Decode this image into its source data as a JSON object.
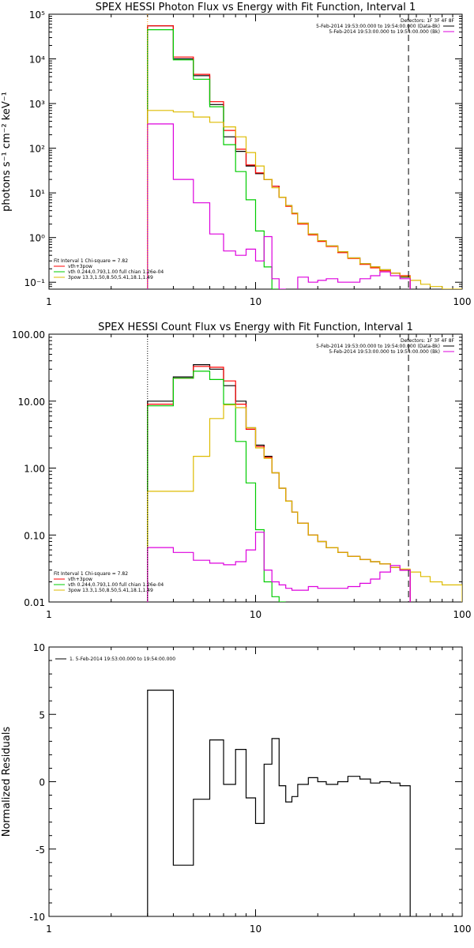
{
  "colors": {
    "black": "#000000",
    "red": "#ff0000",
    "green": "#00cc00",
    "yellow": "#ddbb00",
    "magenta": "#dd00dd",
    "orange": "#ff9900"
  },
  "chart_data": [
    {
      "type": "line",
      "title": "SPEX HESSI Photon Flux vs Energy with Fit Function, Interval 1",
      "xlabel": "",
      "ylabel": "photons s⁻¹ cm⁻² keV⁻¹",
      "xscale": "log",
      "yscale": "log",
      "xlim": [
        1,
        100
      ],
      "ylim": [
        0.07,
        100000
      ],
      "xticks": [
        {
          "v": 1,
          "label": "1"
        },
        {
          "v": 10,
          "label": "10"
        },
        {
          "v": 100,
          "label": "100"
        }
      ],
      "yticks": [
        {
          "v": 0.1,
          "label": "10⁻¹"
        },
        {
          "v": 1,
          "label": "10⁰"
        },
        {
          "v": 10,
          "label": "10¹"
        },
        {
          "v": 100,
          "label": "10²"
        },
        {
          "v": 1000,
          "label": "10³"
        },
        {
          "v": 10000,
          "label": "10⁴"
        },
        {
          "v": 100000,
          "label": "10⁵"
        }
      ],
      "edges": [
        3.0,
        4.0,
        5.0,
        6.0,
        7.0,
        8.0,
        9.0,
        10.0,
        11.0,
        12.0,
        13.0,
        14.0,
        15.0,
        16.0,
        18.0,
        20.0,
        22.0,
        25.0,
        28.0,
        32.0,
        36.0,
        40.0,
        45.0,
        50.0,
        56.0,
        63.0,
        70.0,
        80.0,
        100.0
      ],
      "series": [
        {
          "color": "#000000",
          "values": [
            55000,
            10000,
            4200,
            950,
            180,
            85,
            40,
            27,
            20,
            14,
            8,
            5.2,
            3.5,
            2.1,
            1.2,
            0.85,
            0.65,
            0.48,
            0.35,
            0.26,
            0.22,
            0.19,
            0.16,
            0.13,
            null,
            null,
            null,
            null
          ]
        },
        {
          "color": "#ff0000",
          "values": [
            55000,
            11000,
            4500,
            1100,
            250,
            95,
            42,
            28,
            20,
            14,
            8,
            5,
            3.4,
            2,
            1.15,
            0.82,
            0.63,
            0.46,
            0.34,
            0.25,
            0.21,
            0.18,
            0.16,
            0.14,
            null,
            null,
            null,
            null
          ]
        },
        {
          "color": "#00cc00",
          "values": [
            45000,
            9500,
            3500,
            850,
            120,
            30,
            7,
            1.4,
            0.22,
            0.05,
            null,
            null,
            null,
            null,
            null,
            null,
            null,
            null,
            null,
            null,
            null,
            null,
            null,
            null,
            null,
            null,
            null,
            null
          ]
        },
        {
          "color": "#ddbb00",
          "values": [
            700,
            650,
            500,
            380,
            300,
            180,
            80,
            40,
            20,
            13,
            8,
            5.2,
            3.5,
            2.1,
            1.2,
            0.85,
            0.65,
            0.48,
            0.35,
            0.26,
            0.22,
            0.19,
            0.16,
            0.135,
            0.11,
            0.09,
            0.08,
            0.07
          ]
        },
        {
          "color": "#dd00dd",
          "values": [
            350,
            20,
            6,
            1.2,
            0.5,
            0.4,
            0.55,
            0.3,
            1.05,
            0.12,
            0.07,
            null,
            null,
            0.13,
            0.1,
            0.11,
            0.12,
            0.1,
            0.1,
            0.12,
            0.14,
            0.17,
            0.14,
            0.12,
            null,
            null,
            null,
            null
          ]
        }
      ],
      "vlines": [
        {
          "x": 3.0,
          "style": "dotted-orange"
        },
        {
          "x": 55.0,
          "style": "dashed-black"
        }
      ],
      "legend_right": {
        "header": "Detectors: 1F 3F 4F 8F",
        "entries": [
          {
            "text": "5-Feb-2014 19:53:00.000 to 19:54:00.000 (Data-Bk)",
            "color": "#000000"
          },
          {
            "text": "5-Feb-2014 19:53:00.000 to 19:54:00.000 (Bk)",
            "color": "#dd00dd"
          }
        ]
      },
      "legend_left": {
        "header": "Fit Interval  1    Chi-square = 7.82",
        "entries": [
          {
            "text": "vth+3pow",
            "color": "#ff0000"
          },
          {
            "text": "vth 0.244,0.793,1.00  full chian 1.26e-04",
            "color": "#00cc00"
          },
          {
            "text": "3pow 13.3,1.50,8.50,5.41,18.1,1.49",
            "color": "#ddbb00"
          }
        ]
      }
    },
    {
      "type": "line",
      "title": "SPEX HESSI Count Flux vs Energy with Fit Function, Interval 1",
      "xlabel": "",
      "ylabel": "",
      "xscale": "log",
      "yscale": "log",
      "xlim": [
        1,
        100
      ],
      "ylim": [
        0.01,
        100
      ],
      "xticks": [
        {
          "v": 1,
          "label": "1"
        },
        {
          "v": 10,
          "label": "10"
        },
        {
          "v": 100,
          "label": "100"
        }
      ],
      "yticks": [
        {
          "v": 0.01,
          "label": "0.01"
        },
        {
          "v": 0.1,
          "label": "0.10"
        },
        {
          "v": 1,
          "label": "1.00"
        },
        {
          "v": 10,
          "label": "10.00"
        },
        {
          "v": 100,
          "label": "100.00"
        }
      ],
      "edges": [
        3.0,
        4.0,
        5.0,
        6.0,
        7.0,
        8.0,
        9.0,
        10.0,
        11.0,
        12.0,
        13.0,
        14.0,
        15.0,
        16.0,
        18.0,
        20.0,
        22.0,
        25.0,
        28.0,
        32.0,
        36.0,
        40.0,
        45.0,
        50.0,
        56.0,
        63.0,
        70.0,
        80.0,
        100.0
      ],
      "series": [
        {
          "color": "#000000",
          "values": [
            10,
            23,
            35,
            30,
            17,
            10,
            4,
            2.2,
            1.5,
            0.85,
            0.5,
            0.32,
            0.22,
            0.15,
            0.1,
            0.08,
            0.065,
            0.055,
            0.048,
            0.043,
            0.04,
            0.037,
            0.033,
            0.03,
            null,
            null,
            null,
            null
          ]
        },
        {
          "color": "#ff0000",
          "values": [
            9,
            22,
            33,
            32,
            20,
            9,
            3.8,
            2.1,
            1.45,
            0.85,
            0.5,
            0.32,
            0.22,
            0.15,
            0.1,
            0.08,
            0.065,
            0.055,
            0.048,
            0.043,
            0.04,
            0.037,
            0.033,
            0.03,
            null,
            null,
            null,
            null
          ]
        },
        {
          "color": "#00cc00",
          "values": [
            8.5,
            22,
            28,
            21,
            9,
            2.5,
            0.6,
            0.12,
            0.02,
            0.012,
            0.009,
            null,
            null,
            null,
            null,
            null,
            null,
            null,
            null,
            null,
            null,
            null,
            null,
            null,
            null,
            null,
            null,
            null
          ]
        },
        {
          "color": "#ddbb00",
          "values": [
            0.45,
            0.45,
            1.5,
            5.5,
            8.8,
            8,
            4,
            2,
            1.4,
            0.85,
            0.5,
            0.32,
            0.22,
            0.15,
            0.1,
            0.08,
            0.065,
            0.055,
            0.048,
            0.043,
            0.04,
            0.037,
            0.033,
            0.031,
            0.028,
            0.024,
            0.02,
            0.018
          ]
        },
        {
          "color": "#dd00dd",
          "values": [
            0.065,
            0.055,
            0.042,
            0.038,
            0.036,
            0.04,
            0.06,
            0.11,
            0.03,
            0.02,
            0.018,
            0.016,
            0.015,
            0.015,
            0.017,
            0.016,
            0.016,
            0.016,
            0.017,
            0.019,
            0.022,
            0.028,
            0.035,
            0.03,
            null,
            null,
            null,
            null
          ]
        }
      ],
      "vlines": [
        {
          "x": 3.0,
          "style": "dotted-black"
        },
        {
          "x": 55.0,
          "style": "dashed-black"
        }
      ],
      "legend_right": {
        "header": "Detectors: 1F 3F 4F 8F",
        "entries": [
          {
            "text": "5-Feb-2014 19:53:00.000 to 19:54:00.000 (Data-Bk)",
            "color": "#000000"
          },
          {
            "text": "5-Feb-2014 19:53:00.000 to 19:54:00.000 (Bk)",
            "color": "#dd00dd"
          }
        ]
      },
      "legend_left": {
        "header": "Fit Interval  1    Chi-square = 7.82",
        "entries": [
          {
            "text": "vth+3pow",
            "color": "#ff0000"
          },
          {
            "text": "vth 0.244,0.793,1.00  full chian 1.26e-04",
            "color": "#00cc00"
          },
          {
            "text": "3pow 13.3,1.50,8.50,5.41,18.1,1.49",
            "color": "#ddbb00"
          }
        ]
      }
    },
    {
      "type": "line",
      "title": "",
      "xlabel": "",
      "ylabel": "Normalized Residuals",
      "xscale": "log",
      "yscale": "linear",
      "xlim": [
        1,
        100
      ],
      "ylim": [
        -10,
        10
      ],
      "xticks": [
        {
          "v": 1,
          "label": "1"
        },
        {
          "v": 10,
          "label": "10"
        },
        {
          "v": 100,
          "label": "100"
        }
      ],
      "yticks": [
        {
          "v": -10,
          "label": "-10"
        },
        {
          "v": -5,
          "label": "-5"
        },
        {
          "v": 0,
          "label": "0"
        },
        {
          "v": 5,
          "label": "5"
        },
        {
          "v": 10,
          "label": "10"
        }
      ],
      "edges": [
        3.0,
        4.0,
        5.0,
        6.0,
        7.0,
        8.0,
        9.0,
        10.0,
        11.0,
        12.0,
        13.0,
        14.0,
        15.0,
        16.0,
        18.0,
        20.0,
        22.0,
        25.0,
        28.0,
        32.0,
        36.0,
        40.0,
        45.0,
        50.0,
        56.0
      ],
      "series": [
        {
          "color": "#000000",
          "values": [
            6.8,
            -6.2,
            -1.3,
            3.1,
            -0.2,
            2.4,
            -1.2,
            -3.1,
            1.3,
            3.2,
            -0.3,
            -1.5,
            -1.1,
            -0.2,
            0.3,
            0.0,
            -0.2,
            0.0,
            0.4,
            0.2,
            -0.1,
            0.0,
            -0.1,
            -0.3
          ]
        }
      ],
      "drop_to_bottom": true,
      "legend_right": null,
      "legend_left": null,
      "legend_top_left": {
        "entries": [
          {
            "text": "1.  5-Feb-2014 19:53:00.000 to 19:54:00.000",
            "color": "#000000"
          }
        ]
      }
    }
  ]
}
